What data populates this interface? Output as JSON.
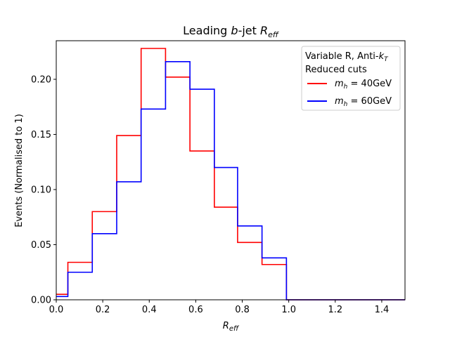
{
  "chart_data": {
    "type": "step",
    "title": "Leading b-jet R_eff",
    "xlabel": "R_eff",
    "ylabel": "Events (Normalised to 1)",
    "xlim": [
      0.0,
      1.5
    ],
    "ylim": [
      0.0,
      0.235
    ],
    "xticks": [
      "0.0",
      "0.2",
      "0.4",
      "0.6",
      "0.8",
      "1.0",
      "1.2",
      "1.4"
    ],
    "yticks": [
      "0.00",
      "0.05",
      "0.10",
      "0.15",
      "0.20"
    ],
    "bin_edges": [
      0.0,
      0.05,
      0.155,
      0.26,
      0.365,
      0.47,
      0.575,
      0.68,
      0.78,
      0.885,
      0.99,
      1.095,
      1.2,
      1.3,
      1.4,
      1.5
    ],
    "legend": {
      "title_line1": "Variable R, Anti-k_T",
      "title_line2": "Reduced cuts",
      "placement": "top-right"
    },
    "series": [
      {
        "name": "m_h = 40GeV",
        "color": "#ff0000",
        "values": [
          0.005,
          0.034,
          0.08,
          0.149,
          0.228,
          0.202,
          0.135,
          0.084,
          0.052,
          0.032,
          0.0,
          0.0,
          0.0,
          0.0,
          0.0
        ]
      },
      {
        "name": "m_h = 60GeV",
        "color": "#0000ff",
        "values": [
          0.003,
          0.025,
          0.06,
          0.107,
          0.173,
          0.216,
          0.191,
          0.12,
          0.067,
          0.038,
          0.0,
          0.0,
          0.0,
          0.0,
          0.0
        ]
      }
    ]
  }
}
